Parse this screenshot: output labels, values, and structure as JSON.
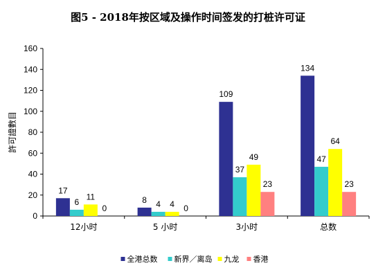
{
  "chart_data": {
    "type": "bar",
    "title": "图5 - 2018年按区域及操作时间签发的打桩许可证",
    "xlabel": "",
    "ylabel": "許可證數目",
    "ylim": [
      0,
      160
    ],
    "yticks": [
      0,
      20,
      40,
      60,
      80,
      100,
      120,
      140,
      160
    ],
    "grid": false,
    "legend_position": "bottom",
    "categories": [
      "12小时",
      "5 小时",
      "3小时",
      "总数"
    ],
    "series": [
      {
        "name": "全港总数",
        "color": "#2e3192",
        "values": [
          17,
          8,
          109,
          134
        ]
      },
      {
        "name": "新界／离岛",
        "color": "#33cccc",
        "values": [
          6,
          4,
          37,
          47
        ]
      },
      {
        "name": "九龙",
        "color": "#ffff00",
        "values": [
          11,
          4,
          49,
          64
        ]
      },
      {
        "name": "香港",
        "color": "#ff8080",
        "values": [
          0,
          0,
          23,
          23
        ]
      }
    ]
  }
}
